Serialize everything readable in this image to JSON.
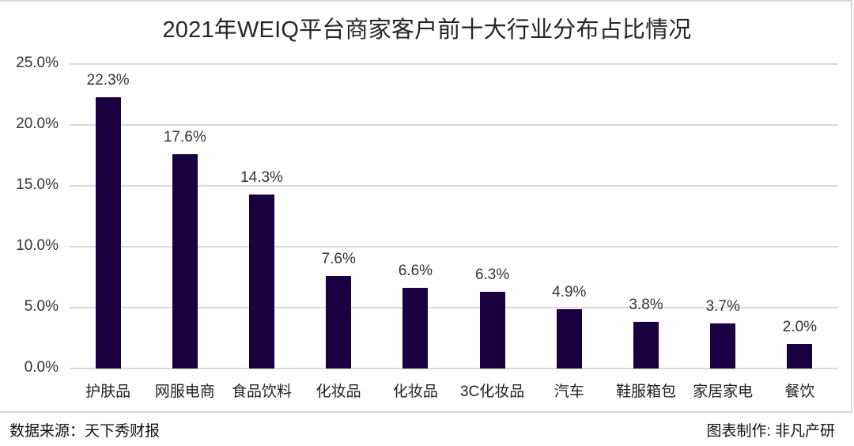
{
  "chart_data": {
    "type": "bar",
    "title": "2021年WEIQ平台商家客户前十大行业分布占比情况",
    "xlabel": "",
    "ylabel": "",
    "categories": [
      "护肤品",
      "网服电商",
      "食品饮料",
      "化妆品",
      "化妆品",
      "3C化妆品",
      "汽车",
      "鞋服箱包",
      "家居家电",
      "餐饮"
    ],
    "values": [
      22.3,
      17.6,
      14.3,
      7.6,
      6.6,
      6.3,
      4.9,
      3.8,
      3.7,
      2.0
    ],
    "value_labels": [
      "22.3%",
      "17.6%",
      "14.3%",
      "7.6%",
      "6.6%",
      "6.3%",
      "4.9%",
      "3.8%",
      "3.7%",
      "2.0%"
    ],
    "unit": "%",
    "ylim": [
      0,
      25
    ],
    "yticks": [
      "0.0%",
      "5.0%",
      "10.0%",
      "15.0%",
      "20.0%",
      "25.0%"
    ],
    "grid": true,
    "legend": null,
    "bar_color": "#1a0040"
  },
  "footer": {
    "source": "数据来源：天下秀财报",
    "credit": "图表制作: 非凡产研"
  }
}
